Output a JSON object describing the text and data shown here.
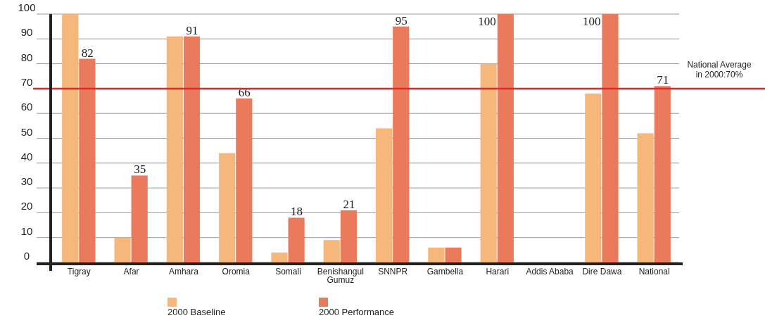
{
  "chart_data": {
    "type": "bar",
    "categories": [
      "Tigray",
      "Afar",
      "Amhara",
      "Oromia",
      "Somali",
      "Benishangul Gumuz",
      "SNNPR",
      "Gambella",
      "Harari",
      "Addis Ababa",
      "Dire Dawa",
      "National"
    ],
    "series": [
      {
        "name": "2000 Baseline",
        "color": "#f6b77c",
        "values": [
          100,
          10,
          91,
          44,
          4,
          9,
          54,
          6,
          80,
          null,
          68,
          52
        ]
      },
      {
        "name": "2000 Performance",
        "color": "#e97b5c",
        "values": [
          82,
          35,
          91,
          66,
          18,
          21,
          95,
          6,
          100,
          null,
          100,
          71
        ],
        "value_labels": [
          "82",
          "35",
          "91",
          "66",
          "18",
          "21",
          "95",
          null,
          "100",
          null,
          "100",
          "71"
        ]
      }
    ],
    "ylim": [
      0,
      100
    ],
    "yticks": [
      0,
      10,
      20,
      30,
      40,
      50,
      60,
      70,
      80,
      90,
      100
    ],
    "grid": "y",
    "legend": "bottom",
    "ref_lines": [
      {
        "axis": "y",
        "value": 70,
        "label": "National Average in 2000:70%",
        "color": "#e8262a"
      }
    ]
  }
}
